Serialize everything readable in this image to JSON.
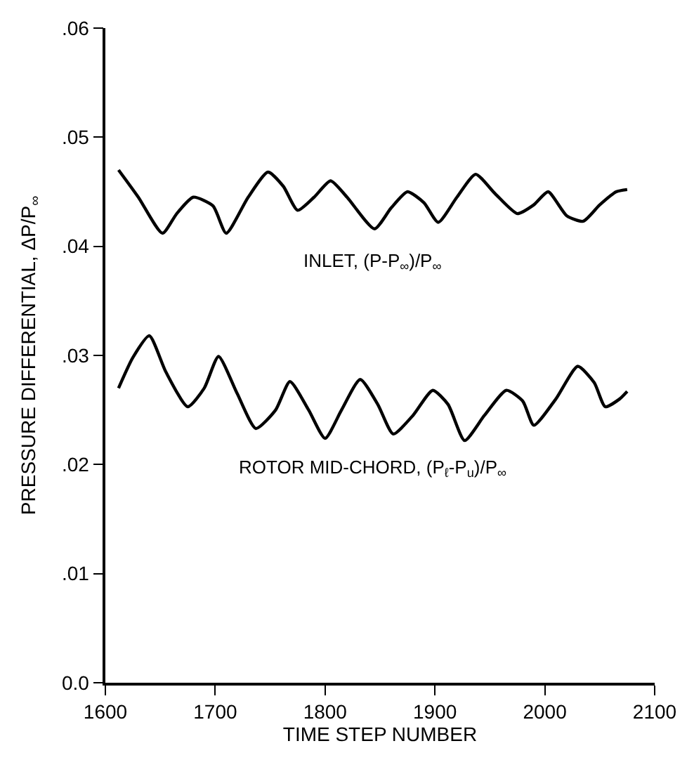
{
  "chart_data": {
    "type": "line",
    "xlabel": "TIME STEP NUMBER",
    "ylabel": "PRESSURE DIFFERENTIAL, ΔP/P$_{∞}$",
    "xlim": [
      1600,
      2100
    ],
    "xticks": [
      1600,
      1700,
      1800,
      1900,
      2000,
      2100
    ],
    "ylim": [
      0,
      0.06
    ],
    "yticks": [
      {
        "value": 0,
        "label": "0.0"
      },
      {
        "value": 0.01,
        "label": ".01"
      },
      {
        "value": 0.02,
        "label": ".02"
      },
      {
        "value": 0.03,
        "label": ".03"
      },
      {
        "value": 0.04,
        "label": ".04"
      },
      {
        "value": 0.05,
        "label": ".05"
      },
      {
        "value": 0.06,
        "label": ".06"
      }
    ],
    "legend": false,
    "marker": "none",
    "line_style": "solid",
    "series": [
      {
        "name": "INLET, (P-P$_{∞}$)/P$_{∞}$",
        "color": "#000000",
        "x": [
          1612,
          1630,
          1652,
          1665,
          1680,
          1698,
          1710,
          1730,
          1748,
          1762,
          1775,
          1790,
          1805,
          1820,
          1845,
          1860,
          1875,
          1890,
          1903,
          1920,
          1937,
          1955,
          1975,
          1990,
          2003,
          2020,
          2035,
          2050,
          2065,
          2075
        ],
        "values": [
          0.047,
          0.0445,
          0.0412,
          0.043,
          0.0445,
          0.0437,
          0.0412,
          0.0445,
          0.0468,
          0.0455,
          0.0433,
          0.0445,
          0.046,
          0.0445,
          0.0416,
          0.0435,
          0.045,
          0.044,
          0.0422,
          0.0445,
          0.0466,
          0.0448,
          0.043,
          0.0438,
          0.045,
          0.0428,
          0.0423,
          0.0438,
          0.045,
          0.0452
        ]
      },
      {
        "name": "ROTOR MID-CHORD, (P$_{ℓ}$-P$_{u}$)/P$_{∞}$",
        "color": "#000000",
        "x": [
          1612,
          1625,
          1640,
          1655,
          1675,
          1690,
          1703,
          1720,
          1737,
          1755,
          1768,
          1785,
          1800,
          1815,
          1832,
          1848,
          1862,
          1880,
          1898,
          1912,
          1927,
          1945,
          1965,
          1980,
          1990,
          2010,
          2030,
          2045,
          2055,
          2068,
          2075
        ],
        "values": [
          0.027,
          0.0298,
          0.0318,
          0.0285,
          0.0253,
          0.027,
          0.0299,
          0.0265,
          0.0233,
          0.025,
          0.0276,
          0.025,
          0.0224,
          0.025,
          0.0278,
          0.0255,
          0.0228,
          0.0245,
          0.0268,
          0.0255,
          0.0222,
          0.0245,
          0.0268,
          0.0258,
          0.0236,
          0.026,
          0.029,
          0.0275,
          0.0253,
          0.026,
          0.0267
        ]
      }
    ]
  }
}
